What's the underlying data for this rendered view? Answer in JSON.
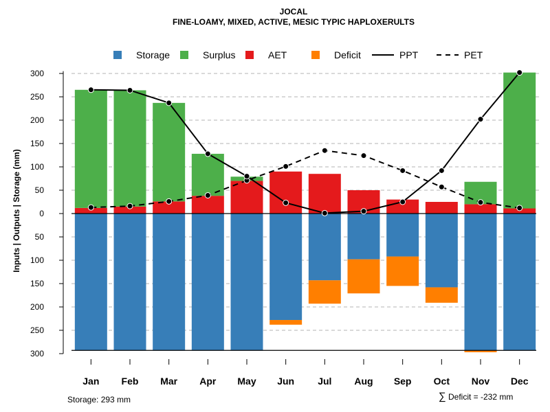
{
  "chart_data": {
    "type": "bar",
    "title": "JOCAL",
    "subtitle": "FINE-LOAMY, MIXED, ACTIVE, MESIC TYPIC HAPLOXERULTS",
    "ylabel": "Inputs | Outputs | Storage    (mm)",
    "ylim": [
      -300,
      300
    ],
    "yticks": [
      "300",
      "250",
      "200",
      "150",
      "100",
      "50",
      "0",
      "50",
      "100",
      "150",
      "200",
      "250",
      "300"
    ],
    "categories": [
      "Jan",
      "Feb",
      "Mar",
      "Apr",
      "May",
      "Jun",
      "Jul",
      "Aug",
      "Sep",
      "Oct",
      "Nov",
      "Dec"
    ],
    "legend": [
      {
        "label": "Storage",
        "kind": "box",
        "color": "#377EB8"
      },
      {
        "label": "Surplus",
        "kind": "box",
        "color": "#4DAF4A"
      },
      {
        "label": "AET",
        "kind": "box",
        "color": "#E41A1C"
      },
      {
        "label": "Deficit",
        "kind": "box",
        "color": "#FF7F00"
      },
      {
        "label": "PPT",
        "kind": "solid",
        "color": "#000000"
      },
      {
        "label": "PET",
        "kind": "dashed",
        "color": "#000000"
      }
    ],
    "series": [
      {
        "name": "AET",
        "color": "#E41A1C",
        "values": [
          12,
          15,
          26,
          38,
          70,
          90,
          85,
          50,
          30,
          25,
          20,
          11
        ]
      },
      {
        "name": "Surplus",
        "color": "#4DAF4A",
        "values": [
          253,
          249,
          211,
          90,
          9,
          0,
          0,
          0,
          0,
          0,
          48,
          291
        ]
      },
      {
        "name": "Storage",
        "color": "#377EB8",
        "values": [
          293,
          293,
          293,
          293,
          293,
          228,
          143,
          98,
          92,
          158,
          293,
          293
        ]
      },
      {
        "name": "Deficit",
        "color": "#FF7F00",
        "values": [
          0,
          0,
          0,
          0,
          0,
          10,
          50,
          73,
          63,
          33,
          4,
          0
        ]
      },
      {
        "name": "PPT",
        "color": "#000000",
        "values": [
          265,
          264,
          237,
          128,
          80,
          23,
          1,
          5,
          25,
          92,
          202,
          302
        ]
      },
      {
        "name": "PET",
        "color": "#000000",
        "values": [
          13,
          16,
          26,
          39,
          71,
          101,
          135,
          124,
          92,
          57,
          24,
          12
        ]
      }
    ],
    "storage_capacity": 293,
    "footer_left": "Storage: 293 mm",
    "footer_right_symbol": "∑",
    "footer_right": "Deficit = -232 mm"
  }
}
